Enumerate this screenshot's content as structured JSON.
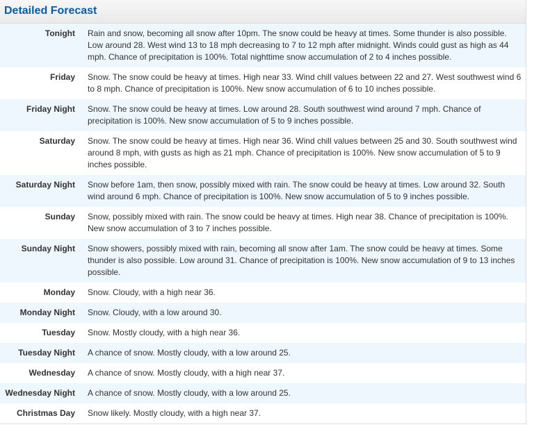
{
  "title": "Detailed Forecast",
  "periods": [
    {
      "label": "Tonight",
      "text": "Rain and snow, becoming all snow after 10pm. The snow could be heavy at times. Some thunder is also possible. Low around 28. West wind 13 to 18 mph decreasing to 7 to 12 mph after midnight. Winds could gust as high as 44 mph. Chance of precipitation is 100%. Total nighttime snow accumulation of 2 to 4 inches possible."
    },
    {
      "label": "Friday",
      "text": "Snow. The snow could be heavy at times. High near 33. Wind chill values between 22 and 27. West southwest wind 6 to 8 mph. Chance of precipitation is 100%. New snow accumulation of 6 to 10 inches possible."
    },
    {
      "label": "Friday Night",
      "text": "Snow. The snow could be heavy at times. Low around 28. South southwest wind around 7 mph. Chance of precipitation is 100%. New snow accumulation of 5 to 9 inches possible."
    },
    {
      "label": "Saturday",
      "text": "Snow. The snow could be heavy at times. High near 36. Wind chill values between 25 and 30. South southwest wind around 8 mph, with gusts as high as 21 mph. Chance of precipitation is 100%. New snow accumulation of 5 to 9 inches possible."
    },
    {
      "label": "Saturday Night",
      "text": "Snow before 1am, then snow, possibly mixed with rain. The snow could be heavy at times. Low around 32. South wind around 6 mph. Chance of precipitation is 100%. New snow accumulation of 5 to 9 inches possible."
    },
    {
      "label": "Sunday",
      "text": "Snow, possibly mixed with rain. The snow could be heavy at times. High near 38. Chance of precipitation is 100%. New snow accumulation of 3 to 7 inches possible."
    },
    {
      "label": "Sunday Night",
      "text": "Snow showers, possibly mixed with rain, becoming all snow after 1am. The snow could be heavy at times. Some thunder is also possible. Low around 31. Chance of precipitation is 100%. New snow accumulation of 9 to 13 inches possible."
    },
    {
      "label": "Monday",
      "text": "Snow. Cloudy, with a high near 36."
    },
    {
      "label": "Monday Night",
      "text": "Snow. Cloudy, with a low around 30."
    },
    {
      "label": "Tuesday",
      "text": "Snow. Mostly cloudy, with a high near 36."
    },
    {
      "label": "Tuesday Night",
      "text": "A chance of snow. Mostly cloudy, with a low around 25."
    },
    {
      "label": "Wednesday",
      "text": "A chance of snow. Mostly cloudy, with a high near 37."
    },
    {
      "label": "Wednesday Night",
      "text": "A chance of snow. Mostly cloudy, with a low around 25."
    },
    {
      "label": "Christmas Day",
      "text": "Snow likely. Mostly cloudy, with a high near 37."
    }
  ]
}
